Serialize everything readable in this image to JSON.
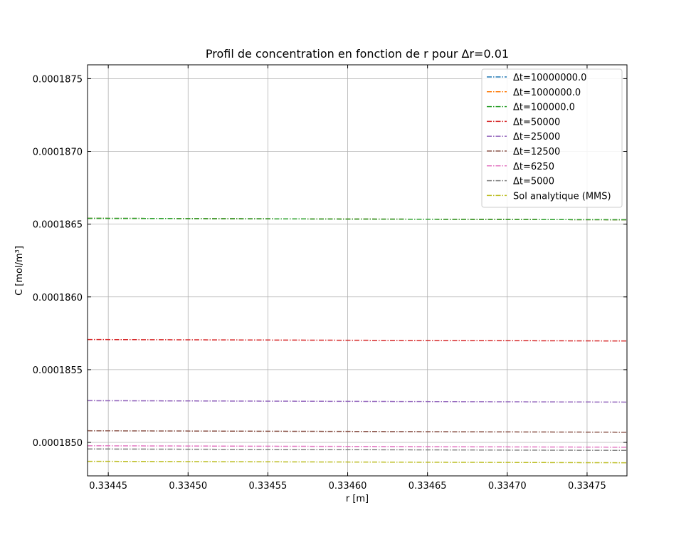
{
  "chart_data": {
    "type": "line",
    "title": "Profil de concentration en fonction de r pour Δr=0.01",
    "xlabel": "r [m]",
    "ylabel": "C [mol/m³]",
    "xlim": [
      0.334437,
      0.334775
    ],
    "ylim": [
      0.00018477,
      0.000187595
    ],
    "x": [
      0.334437,
      0.334775
    ],
    "xticks": [
      0.33445,
      0.3345,
      0.33455,
      0.3346,
      0.33465,
      0.3347,
      0.33475
    ],
    "xtick_labels": [
      "0.33445",
      "0.33450",
      "0.33455",
      "0.33460",
      "0.33465",
      "0.33470",
      "0.33475"
    ],
    "yticks": [
      0.000185,
      0.0001855,
      0.000186,
      0.0001865,
      0.000187,
      0.0001875
    ],
    "ytick_labels": [
      "0.0001850",
      "0.0001855",
      "0.0001860",
      "0.0001865",
      "0.0001870",
      "0.0001875"
    ],
    "grid": true,
    "legend_position": "top-right",
    "line_style": "dash-dot",
    "series": [
      {
        "name": "Δt=10000000.0",
        "color": "#1f77b4",
        "values": [
          0.00018654,
          0.00018653
        ]
      },
      {
        "name": "Δt=1000000.0",
        "color": "#ff7f0e",
        "values": [
          0.00018654,
          0.00018653
        ]
      },
      {
        "name": "Δt=100000.0",
        "color": "#2ca02c",
        "values": [
          0.00018654,
          0.00018653
        ]
      },
      {
        "name": "Δt=50000",
        "color": "#d62728",
        "values": [
          0.000185707,
          0.000185697
        ]
      },
      {
        "name": "Δt=25000",
        "color": "#9467bd",
        "values": [
          0.000185287,
          0.000185277
        ]
      },
      {
        "name": "Δt=12500",
        "color": "#8c564b",
        "values": [
          0.00018508,
          0.00018507
        ]
      },
      {
        "name": "Δt=6250",
        "color": "#e377c2",
        "values": [
          0.000184977,
          0.000184967
        ]
      },
      {
        "name": "Δt=5000",
        "color": "#7f7f7f",
        "values": [
          0.000184955,
          0.000184945
        ]
      },
      {
        "name": "Sol analytique (MMS)",
        "color": "#bcbd22",
        "values": [
          0.00018487,
          0.00018486
        ]
      }
    ]
  }
}
